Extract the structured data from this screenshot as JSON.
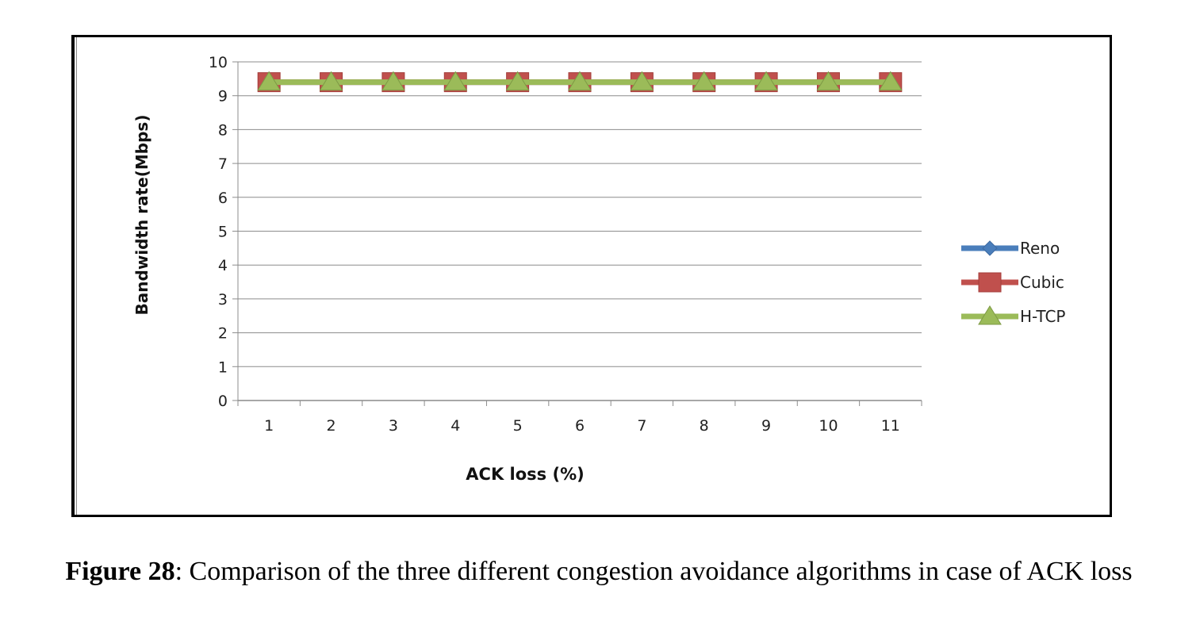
{
  "chart_data": {
    "type": "line",
    "xlabel": "ACK loss (%)",
    "ylabel": "Bandwidth rate(Mbps)",
    "x": [
      1,
      2,
      3,
      4,
      5,
      6,
      7,
      8,
      9,
      10,
      11
    ],
    "ylim": [
      0,
      10
    ],
    "yticks": [
      0,
      1,
      2,
      3,
      4,
      5,
      6,
      7,
      8,
      9,
      10
    ],
    "grid": true,
    "legend_position": "right",
    "series": [
      {
        "name": "Reno",
        "marker": "diamond",
        "color": "#4a7ebb",
        "values": [
          9.4,
          9.4,
          9.4,
          9.4,
          9.4,
          9.4,
          9.4,
          9.4,
          9.4,
          9.4,
          9.4
        ]
      },
      {
        "name": "Cubic",
        "marker": "square",
        "color": "#c0504d",
        "values": [
          9.4,
          9.4,
          9.4,
          9.4,
          9.4,
          9.4,
          9.4,
          9.4,
          9.4,
          9.4,
          9.4
        ]
      },
      {
        "name": "H-TCP",
        "marker": "triangle",
        "color": "#9bbb59",
        "values": [
          9.4,
          9.4,
          9.4,
          9.4,
          9.4,
          9.4,
          9.4,
          9.4,
          9.4,
          9.4,
          9.4
        ]
      }
    ]
  },
  "caption": {
    "label": "Figure 28",
    "text": ": Comparison of the three different congestion avoidance algorithms in case of ACK loss"
  }
}
